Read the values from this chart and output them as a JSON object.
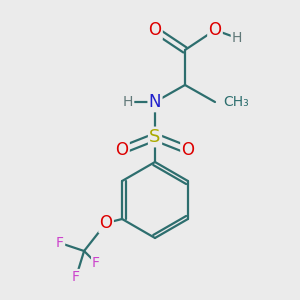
{
  "background_color": "#ebebeb",
  "figsize": [
    3.0,
    3.0
  ],
  "dpi": 100,
  "atom_colors": {
    "C": "#2d6e6e",
    "O": "#dd0000",
    "N": "#2020cc",
    "S": "#aaaa00",
    "H": "#607878",
    "F": "#cc44cc"
  },
  "bond_color": "#2d6e6e",
  "lw": 1.6,
  "fs": 12,
  "fs_small": 10
}
